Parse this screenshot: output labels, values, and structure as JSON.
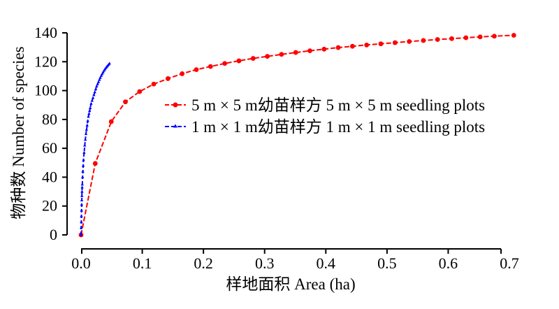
{
  "chart_data": {
    "type": "line",
    "xlabel": "样地面积  Area (ha)",
    "ylabel": "物种数  Number of species",
    "xlim": [
      0,
      0.7
    ],
    "ylim": [
      0,
      140
    ],
    "xticks": [
      "0.0",
      "0.1",
      "0.2",
      "0.3",
      "0.4",
      "0.5",
      "0.6",
      "0.7"
    ],
    "yticks": [
      "0",
      "20",
      "40",
      "60",
      "80",
      "100",
      "120",
      "140"
    ],
    "grid": false,
    "legend_position": "center-right",
    "series": [
      {
        "name": "5 m × 5 m幼苗样方 5 m × 5 m seedling plots",
        "color": "#ff0000",
        "marker": "circle",
        "x": [
          0.0,
          0.0232,
          0.0494,
          0.0725,
          0.0957,
          0.1188,
          0.142,
          0.1652,
          0.1884,
          0.2116,
          0.2348,
          0.258,
          0.2812,
          0.3044,
          0.3276,
          0.3508,
          0.374,
          0.3972,
          0.4203,
          0.4435,
          0.4667,
          0.4899,
          0.5131,
          0.5363,
          0.5594,
          0.5826,
          0.6058,
          0.629,
          0.6522,
          0.6754,
          0.7072
        ],
        "y": [
          0,
          49.5,
          78.5,
          92.2,
          99.3,
          104.5,
          108.3,
          111.7,
          114.5,
          116.7,
          118.8,
          120.6,
          122.3,
          123.7,
          125.1,
          126.4,
          127.6,
          128.7,
          129.8,
          130.7,
          131.6,
          132.4,
          133.2,
          134.0,
          134.7,
          135.4,
          136.0,
          136.6,
          137.2,
          137.7,
          138.3
        ]
      },
      {
        "name": "1 m × 1 m幼苗样方 1 m × 1 m seedling plots",
        "color": "#0000ff",
        "marker": "triangle",
        "x": [
          0.0,
          0.0002,
          0.0004,
          0.0006,
          0.0008,
          0.001,
          0.0012,
          0.0014,
          0.0016,
          0.0018,
          0.002,
          0.0025,
          0.003,
          0.0035,
          0.004,
          0.005,
          0.006,
          0.007,
          0.008,
          0.009,
          0.01,
          0.011,
          0.012,
          0.013,
          0.014,
          0.015,
          0.0165,
          0.018,
          0.0195,
          0.021,
          0.0225,
          0.024,
          0.0255,
          0.027,
          0.0285,
          0.03,
          0.0315,
          0.033,
          0.0345,
          0.036,
          0.0375,
          0.039,
          0.0405,
          0.042,
          0.0435,
          0.045,
          0.0465
        ],
        "y": [
          0,
          5,
          9,
          13,
          17,
          21,
          24,
          27,
          30,
          33,
          35,
          40,
          44,
          48,
          52,
          57,
          62,
          66,
          70,
          73,
          76,
          79,
          82,
          84,
          86,
          88,
          91,
          93,
          95,
          97,
          99,
          101,
          103,
          104.5,
          106,
          107.5,
          109,
          110.3,
          111.5,
          112.7,
          113.8,
          114.8,
          115.7,
          116.5,
          117.3,
          118,
          118.8
        ]
      }
    ]
  }
}
